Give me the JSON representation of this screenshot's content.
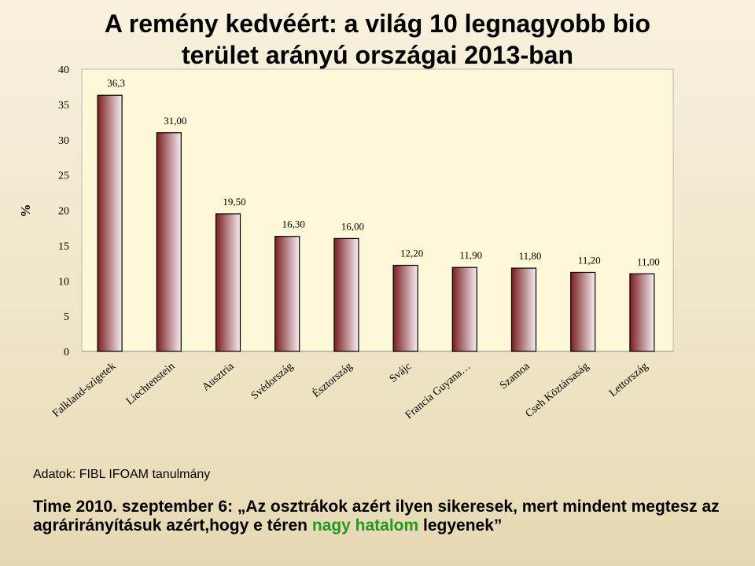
{
  "chart_data": {
    "type": "bar",
    "title_line1": "A remény kedvéért: a világ 10 legnagyobb bio",
    "title_line2": "terület arányú országai 2013-ban",
    "ylabel": "%",
    "ylim": [
      0,
      40
    ],
    "yticks": [
      "0",
      "5",
      "10",
      "15",
      "20",
      "25",
      "30",
      "35",
      "40"
    ],
    "categories": [
      "Falkland-szigetek",
      "Liechtenstein",
      "Ausztria",
      "Svédország",
      "Észtország",
      "Svájc",
      "Francia Guyana…",
      "Szamoa",
      "Cseh Köztársaság",
      "Lettország"
    ],
    "values": [
      36.3,
      31.0,
      19.5,
      16.3,
      16.0,
      12.2,
      11.9,
      11.8,
      11.2,
      11.0
    ],
    "value_labels": [
      "36,3",
      "31,00",
      "19,50",
      "16,30",
      "16,00",
      "12,20",
      "11,90",
      "11,80",
      "11,20",
      "11,00"
    ],
    "plot_background": "#fdf9d8",
    "bar_color_dark": "#7a1e1e",
    "bar_color_light": "#f6eef4",
    "grid": false
  },
  "source": "Adatok: FIBL IFOAM tanulmány",
  "note": {
    "part1": "Time 2010. szeptember 6: „Az osztrákok azért ilyen sikeresek, mert mindent megtesz az agrárirányításuk azért,hogy e téren ",
    "highlight": "nagy hatalom",
    "part2": " legyenek”",
    "highlight_color": "#1f9a1f"
  }
}
